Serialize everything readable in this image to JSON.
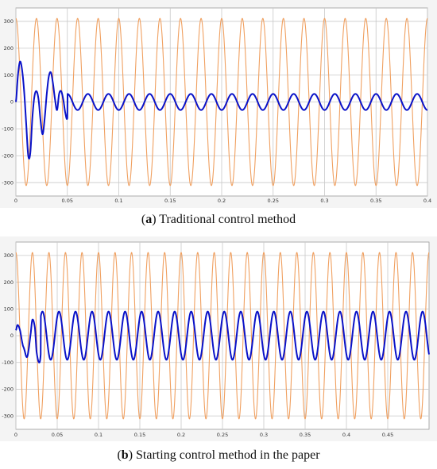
{
  "colors": {
    "background": "#ffffff",
    "grid": "#c8c8c8",
    "voltage_curve": "#f0a060",
    "current_curve": "#0a12c8"
  },
  "captions": {
    "a": {
      "letter": "a",
      "text": "Traditional control method"
    },
    "b": {
      "letter": "b",
      "text": "Starting control method in the paper"
    }
  },
  "chart_data": [
    {
      "type": "line",
      "title": "",
      "xlabel": "",
      "ylabel": "",
      "xlim": [
        0,
        0.4
      ],
      "ylim": [
        -350,
        350
      ],
      "grid": true,
      "x_ticks": [
        0,
        0.05,
        0.1,
        0.15,
        0.2,
        0.25,
        0.3,
        0.35,
        0.4
      ],
      "x_tick_labels": [
        "0",
        "0.05",
        "0.1",
        "0.15",
        "0.2",
        "0.25",
        "0.3",
        "0.35",
        "0.4"
      ],
      "y_ticks": [
        300,
        200,
        100,
        0,
        -100,
        -200,
        -300
      ],
      "y_tick_labels": [
        "300",
        "200",
        "100",
        "0",
        "-100",
        "-200",
        "-300"
      ],
      "series": [
        {
          "key": "voltage",
          "color": "#f0a060",
          "kind": "sine",
          "amplitude": 311,
          "frequency_hz": 50,
          "phase_deg": 90,
          "x_range": [
            0,
            0.4
          ]
        },
        {
          "key": "current",
          "color": "#0a12c8",
          "kind": "points",
          "frequency_hz": 50,
          "x": [
            0,
            0.002,
            0.004,
            0.006,
            0.008,
            0.01,
            0.012,
            0.014,
            0.016,
            0.018,
            0.02,
            0.022,
            0.024,
            0.026,
            0.028,
            0.03,
            0.032,
            0.034,
            0.036,
            0.038,
            0.04,
            0.042,
            0.044,
            0.046,
            0.048,
            0.05
          ],
          "y": [
            0,
            100,
            150,
            120,
            40,
            -80,
            -200,
            -190,
            -60,
            20,
            40,
            10,
            -70,
            -120,
            -60,
            30,
            95,
            110,
            70,
            10,
            -30,
            30,
            40,
            10,
            -40,
            -60
          ],
          "steady_amplitude": 30,
          "steady_from_x": 0.05,
          "x_end": 0.4
        }
      ]
    },
    {
      "type": "line",
      "title": "",
      "xlabel": "",
      "ylabel": "",
      "xlim": [
        0,
        0.5
      ],
      "ylim": [
        -350,
        350
      ],
      "grid": true,
      "x_ticks": [
        0,
        0.05,
        0.1,
        0.15,
        0.2,
        0.25,
        0.3,
        0.35,
        0.4,
        0.45
      ],
      "x_tick_labels": [
        "0",
        "0.05",
        "0.1",
        "0.15",
        "0.2",
        "0.25",
        "0.3",
        "0.35",
        "0.4",
        "0.45"
      ],
      "y_ticks": [
        300,
        200,
        100,
        0,
        -100,
        -200,
        -300
      ],
      "y_tick_labels": [
        "300",
        "200",
        "100",
        "0",
        "-100",
        "-200",
        "-300"
      ],
      "series": [
        {
          "key": "voltage",
          "color": "#f0a060",
          "kind": "sine",
          "amplitude": 311,
          "frequency_hz": 50,
          "phase_deg": 90,
          "x_range": [
            0,
            0.5
          ]
        },
        {
          "key": "current",
          "color": "#0a12c8",
          "kind": "points",
          "frequency_hz": 50,
          "x": [
            0,
            0.002,
            0.005,
            0.008,
            0.01,
            0.013,
            0.015,
            0.018,
            0.02,
            0.023,
            0.025,
            0.028,
            0.03
          ],
          "y": [
            20,
            40,
            20,
            -30,
            -50,
            -80,
            -60,
            10,
            60,
            30,
            -60,
            -100,
            -70
          ],
          "steady_amplitude": 90,
          "steady_from_x": 0.03,
          "x_end": 0.5
        }
      ]
    }
  ]
}
